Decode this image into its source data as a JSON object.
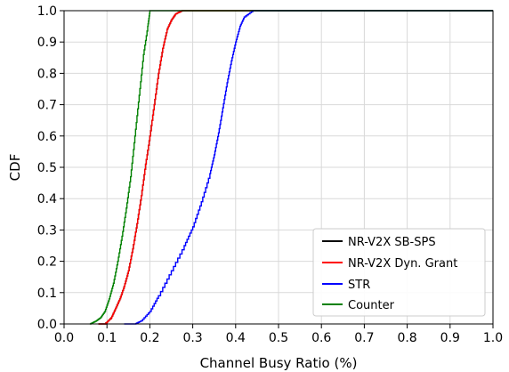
{
  "chart_data": {
    "type": "line",
    "xlabel": "Channel Busy Ratio (%)",
    "ylabel": "CDF",
    "xlim": [
      0.0,
      1.0
    ],
    "ylim": [
      0.0,
      1.0
    ],
    "x_ticks": [
      "0.0",
      "0.1",
      "0.2",
      "0.3",
      "0.4",
      "0.5",
      "0.6",
      "0.7",
      "0.8",
      "0.9",
      "1.0"
    ],
    "y_ticks": [
      "0.0",
      "0.1",
      "0.2",
      "0.3",
      "0.4",
      "0.5",
      "0.6",
      "0.7",
      "0.8",
      "0.9",
      "1.0"
    ],
    "grid": true,
    "legend_position": "bottom-right",
    "series": [
      {
        "name": "NR-V2X SB-SPS",
        "color": "#000000",
        "points": [
          [
            0.08,
            0.0
          ],
          [
            0.095,
            0.0
          ],
          [
            0.11,
            0.02
          ],
          [
            0.12,
            0.05
          ],
          [
            0.13,
            0.08
          ],
          [
            0.14,
            0.12
          ],
          [
            0.15,
            0.17
          ],
          [
            0.16,
            0.24
          ],
          [
            0.17,
            0.32
          ],
          [
            0.18,
            0.41
          ],
          [
            0.19,
            0.51
          ],
          [
            0.2,
            0.6
          ],
          [
            0.21,
            0.7
          ],
          [
            0.22,
            0.8
          ],
          [
            0.23,
            0.88
          ],
          [
            0.24,
            0.94
          ],
          [
            0.25,
            0.97
          ],
          [
            0.26,
            0.99
          ],
          [
            0.275,
            1.0
          ],
          [
            1.0,
            1.0
          ]
        ]
      },
      {
        "name": "NR-V2X Dyn. Grant",
        "color": "#ff0000",
        "points": [
          [
            0.08,
            0.0
          ],
          [
            0.095,
            0.0
          ],
          [
            0.11,
            0.02
          ],
          [
            0.12,
            0.05
          ],
          [
            0.13,
            0.08
          ],
          [
            0.14,
            0.12
          ],
          [
            0.15,
            0.17
          ],
          [
            0.16,
            0.24
          ],
          [
            0.17,
            0.32
          ],
          [
            0.18,
            0.41
          ],
          [
            0.19,
            0.51
          ],
          [
            0.2,
            0.6
          ],
          [
            0.21,
            0.7
          ],
          [
            0.22,
            0.8
          ],
          [
            0.23,
            0.88
          ],
          [
            0.24,
            0.94
          ],
          [
            0.25,
            0.97
          ],
          [
            0.26,
            0.99
          ],
          [
            0.275,
            1.0
          ],
          [
            1.0,
            1.0
          ]
        ]
      },
      {
        "name": "STR",
        "color": "#0000ff",
        "points": [
          [
            0.14,
            0.0
          ],
          [
            0.165,
            0.0
          ],
          [
            0.18,
            0.01
          ],
          [
            0.2,
            0.04
          ],
          [
            0.22,
            0.09
          ],
          [
            0.25,
            0.17
          ],
          [
            0.28,
            0.25
          ],
          [
            0.3,
            0.31
          ],
          [
            0.32,
            0.39
          ],
          [
            0.34,
            0.48
          ],
          [
            0.35,
            0.54
          ],
          [
            0.36,
            0.61
          ],
          [
            0.37,
            0.69
          ],
          [
            0.38,
            0.77
          ],
          [
            0.39,
            0.84
          ],
          [
            0.4,
            0.9
          ],
          [
            0.41,
            0.95
          ],
          [
            0.42,
            0.98
          ],
          [
            0.44,
            1.0
          ],
          [
            1.0,
            1.0
          ]
        ]
      },
      {
        "name": "Counter",
        "color": "#008000",
        "points": [
          [
            0.06,
            0.0
          ],
          [
            0.075,
            0.01
          ],
          [
            0.085,
            0.02
          ],
          [
            0.095,
            0.04
          ],
          [
            0.105,
            0.08
          ],
          [
            0.115,
            0.13
          ],
          [
            0.125,
            0.2
          ],
          [
            0.135,
            0.28
          ],
          [
            0.145,
            0.37
          ],
          [
            0.155,
            0.47
          ],
          [
            0.165,
            0.6
          ],
          [
            0.175,
            0.73
          ],
          [
            0.185,
            0.86
          ],
          [
            0.195,
            0.95
          ],
          [
            0.2,
            1.0
          ],
          [
            1.0,
            1.0
          ]
        ]
      }
    ]
  }
}
